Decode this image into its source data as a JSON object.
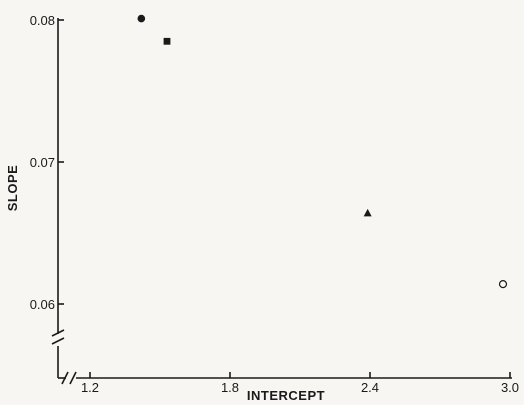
{
  "chart_data": {
    "type": "scatter",
    "title": "",
    "xlabel": "INTERCEPT",
    "ylabel": "SLOPE",
    "xlim": [
      1.0,
      3.0
    ],
    "ylim": [
      0.056,
      0.08
    ],
    "x_ticks": [
      "1.2",
      "1.8",
      "2.4",
      "3.0"
    ],
    "y_ticks": [
      "0.06",
      "0.07",
      "0.08"
    ],
    "axis_breaks": true,
    "grid": false,
    "legend": "none",
    "points": [
      {
        "x": 1.42,
        "y": 0.0801,
        "marker": "filled-circle",
        "color": "#1a1a1a"
      },
      {
        "x": 1.53,
        "y": 0.0785,
        "marker": "filled-square",
        "color": "#1a1a1a"
      },
      {
        "x": 2.39,
        "y": 0.0664,
        "marker": "filled-triangle",
        "color": "#1a1a1a"
      },
      {
        "x": 2.97,
        "y": 0.0614,
        "marker": "open-circle",
        "color": "#1a1a1a"
      }
    ]
  }
}
